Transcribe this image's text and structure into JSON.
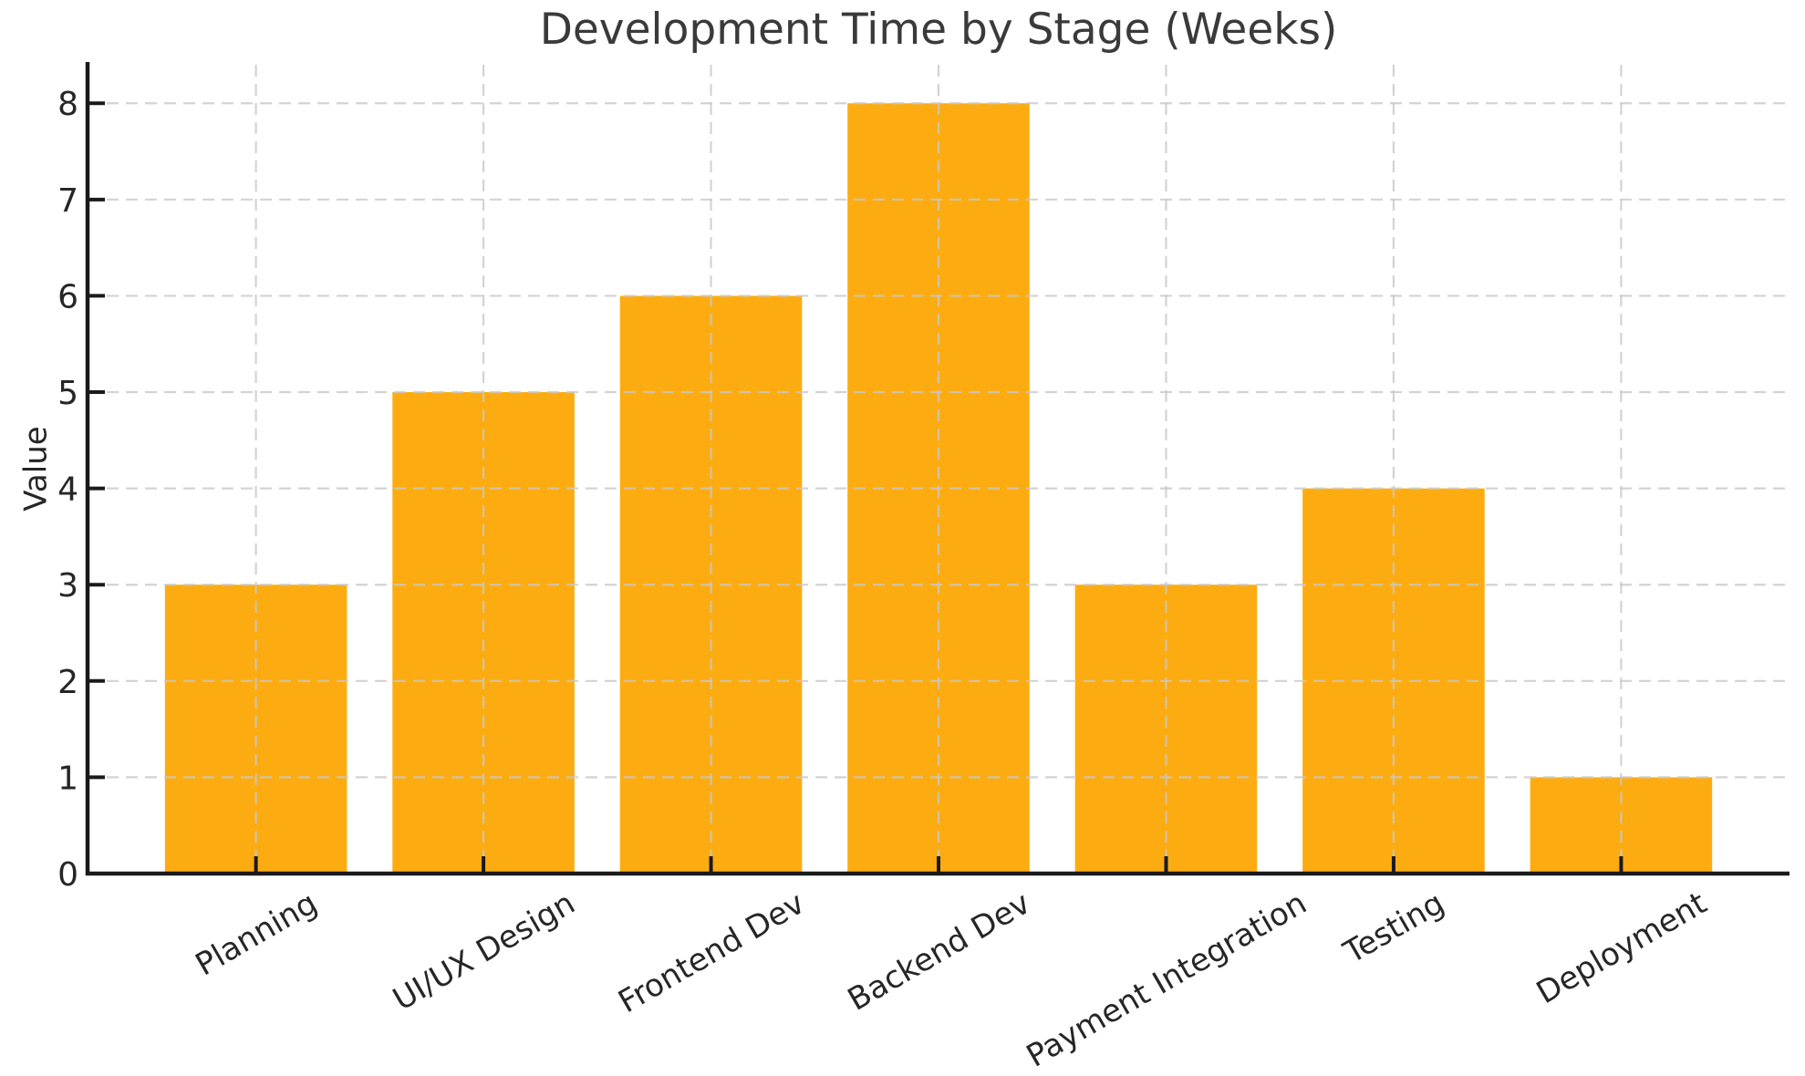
{
  "chart_data": {
    "type": "bar",
    "title": "Development Time by Stage (Weeks)",
    "xlabel": "",
    "ylabel": "Value",
    "categories": [
      "Planning",
      "UI/UX Design",
      "Frontend Dev",
      "Backend Dev",
      "Payment Integration",
      "Testing",
      "Deployment"
    ],
    "values": [
      3,
      5,
      6,
      8,
      3,
      4,
      1
    ],
    "yticks": [
      0,
      1,
      2,
      3,
      4,
      5,
      6,
      7,
      8
    ],
    "ylim": [
      0,
      8.4
    ],
    "x_tick_label_rotation_deg": 30,
    "grid": "dashed, both axes, drawn over bars",
    "legend": "none",
    "colors": {
      "bar": "#FCAC11",
      "grid": "#c9c9c9",
      "axis": "#1a1a1a",
      "tick_text": "#262626",
      "title_text": "#3a3a3a",
      "background": "#ffffff"
    }
  }
}
